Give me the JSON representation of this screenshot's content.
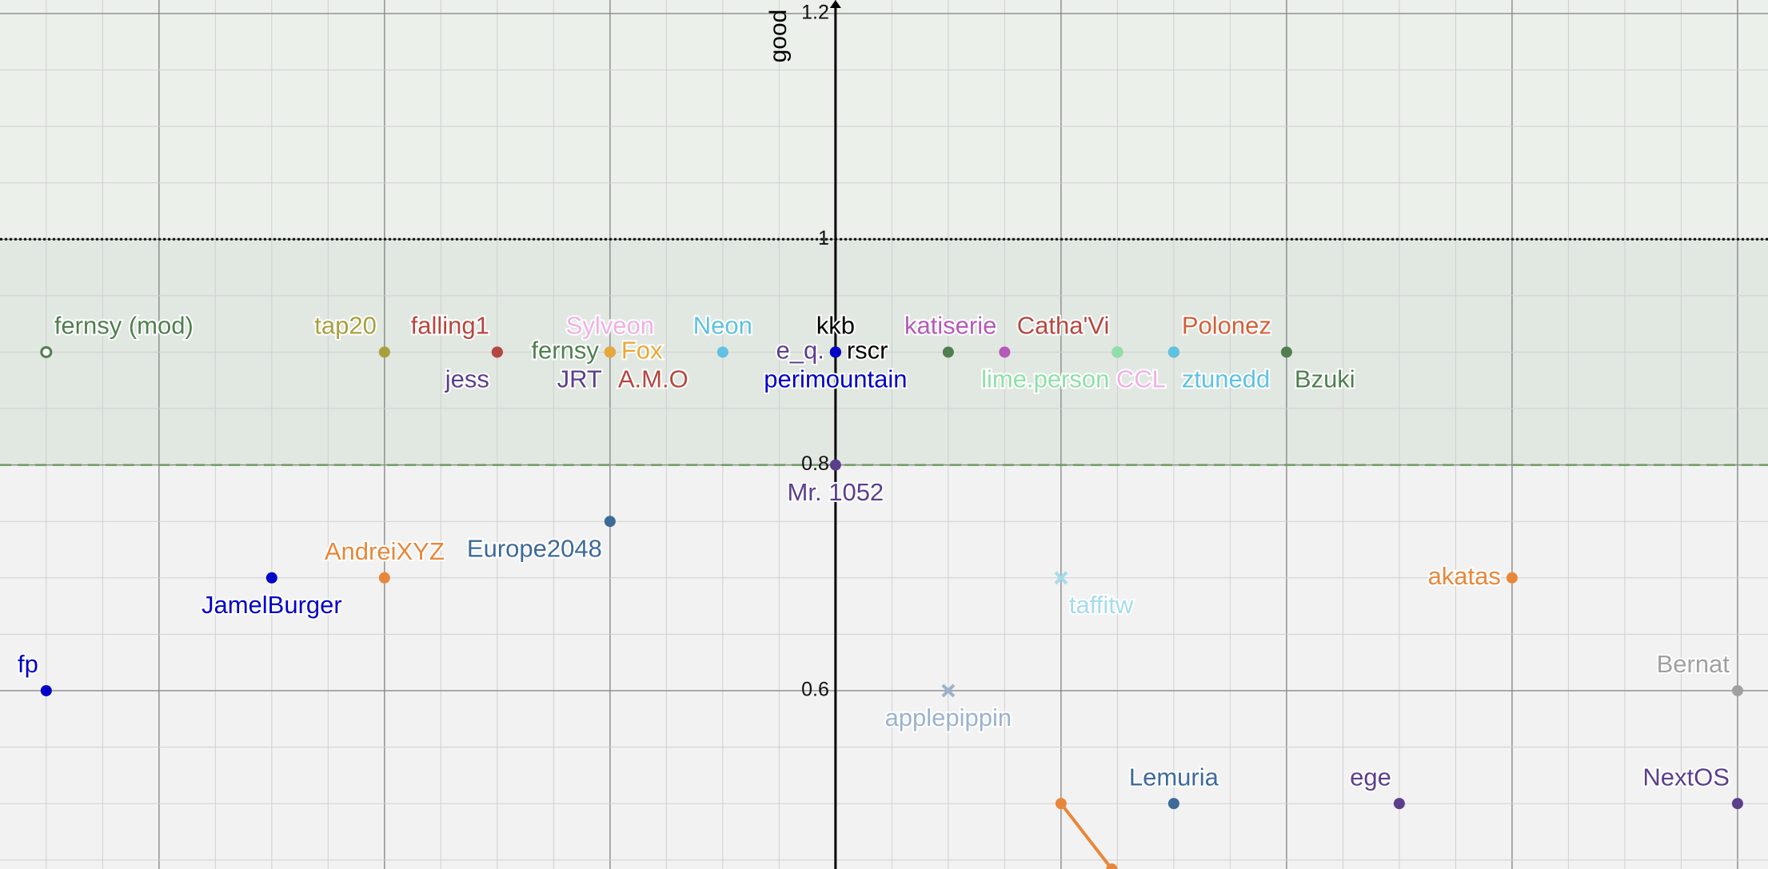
{
  "chart_data": {
    "type": "scatter",
    "y_label": "good",
    "xlim": [
      -0.741,
      0.827
    ],
    "ylim": [
      0.442,
      1.212
    ],
    "yticks": [
      0.6,
      0.8,
      1,
      1.2
    ],
    "grid": true,
    "bands": [
      {
        "from": 1,
        "to": 1.212,
        "color": "#ebf0eb"
      },
      {
        "from": 0.8,
        "to": 1,
        "color": "#e1e7e1"
      }
    ],
    "reference_lines": [
      {
        "y": 1,
        "style": "dotted",
        "color": "#111111"
      },
      {
        "y": 0.8,
        "style": "dashed",
        "color": "#6f9a63"
      }
    ],
    "series": [
      {
        "name": "fernsy (mod)",
        "color": "#4f7f4f",
        "x": [
          -0.7
        ],
        "values": [
          0.9
        ],
        "marker": "open",
        "label_pos": "above-right"
      },
      {
        "name": "tap20",
        "color": "#a8a03c",
        "x": [
          -0.4
        ],
        "values": [
          0.9
        ],
        "marker": "dot",
        "label_pos": "above-left"
      },
      {
        "name": "jess",
        "color": "#5b3f8c",
        "x": [
          -0.3
        ],
        "values": [
          0.9
        ],
        "marker": "dot",
        "label_pos": "below-left"
      },
      {
        "name": "falling1",
        "color": "#b5473f",
        "x": [
          -0.3
        ],
        "values": [
          0.9
        ],
        "marker": "dot",
        "label_pos": "above-left"
      },
      {
        "name": "JRT",
        "color": "#5b3f8c",
        "x": [
          -0.2
        ],
        "values": [
          0.9
        ],
        "marker": "dot",
        "label_pos": "below-left"
      },
      {
        "name": "A.M.O",
        "color": "#b5473f",
        "x": [
          -0.2
        ],
        "values": [
          0.9
        ],
        "marker": "dot",
        "label_pos": "below-right"
      },
      {
        "name": "fernsy",
        "color": "#4f7f4f",
        "x": [
          -0.2
        ],
        "values": [
          0.9
        ],
        "marker": "dot",
        "label_pos": "left"
      },
      {
        "name": "Sylveon",
        "color": "#f0b0e6",
        "x": [
          -0.2
        ],
        "values": [
          0.9
        ],
        "marker": "dot",
        "label_pos": "above"
      },
      {
        "name": "Fox",
        "color": "#e8a838",
        "x": [
          -0.2
        ],
        "values": [
          0.9
        ],
        "marker": "dot",
        "label_pos": "right"
      },
      {
        "name": "Neon",
        "color": "#5ec2e2",
        "x": [
          -0.1
        ],
        "values": [
          0.9
        ],
        "marker": "dot",
        "label_pos": "above"
      },
      {
        "name": "e_q.",
        "color": "#5b3f8c",
        "x": [
          0
        ],
        "values": [
          0.9
        ],
        "marker": "dot",
        "label_pos": "left"
      },
      {
        "name": "kkb",
        "color": "#000000",
        "x": [
          0
        ],
        "values": [
          0.9
        ],
        "marker": "dot",
        "label_pos": "above"
      },
      {
        "name": "rscr",
        "color": "#000000",
        "x": [
          0
        ],
        "values": [
          0.9
        ],
        "marker": "dot",
        "label_pos": "right"
      },
      {
        "name": "perimountain",
        "color": "#0000c8",
        "x": [
          0
        ],
        "values": [
          0.9
        ],
        "marker": "dot",
        "label_pos": "below"
      },
      {
        "color": "#4f7f4f",
        "x": [
          0.1
        ],
        "values": [
          0.9
        ],
        "marker": "dot"
      },
      {
        "name": "katiserie",
        "color": "#b55ab8",
        "x": [
          0.15
        ],
        "values": [
          0.9
        ],
        "marker": "dot",
        "label_pos": "above-left"
      },
      {
        "name": "Catha'Vi",
        "color": "#b5473f",
        "x": [
          0.25
        ],
        "values": [
          0.9
        ],
        "marker": "dot",
        "label_pos": "above-left"
      },
      {
        "name": "lime.person",
        "color": "#8fe0a8",
        "x": [
          0.25
        ],
        "values": [
          0.9
        ],
        "marker": "dot",
        "label_pos": "below-left"
      },
      {
        "name": "CCL",
        "color": "#f0b0e6",
        "x": [
          0.3
        ],
        "values": [
          0.9
        ],
        "marker": "dot",
        "label_pos": "below-left"
      },
      {
        "name": "Polonez",
        "color": "#d5603a",
        "x": [
          0.3
        ],
        "values": [
          0.9
        ],
        "marker": "dot",
        "label_pos": "above-right"
      },
      {
        "name": "ztunedd",
        "color": "#5ec2e2",
        "x": [
          0.3
        ],
        "values": [
          0.9
        ],
        "marker": "dot",
        "label_pos": "below-right"
      },
      {
        "name": "Bzuki",
        "color": "#4f7f4f",
        "x": [
          0.4
        ],
        "values": [
          0.9
        ],
        "marker": "dot",
        "label_pos": "below-right"
      },
      {
        "name": "Mr. 1052",
        "color": "#5b3f8c",
        "x": [
          0
        ],
        "values": [
          0.8
        ],
        "marker": "dot",
        "label_pos": "below"
      },
      {
        "name": "Europe2048",
        "color": "#3e6a99",
        "x": [
          -0.2
        ],
        "values": [
          0.75
        ],
        "marker": "dot",
        "label_pos": "below-left"
      },
      {
        "name": "JamelBurger",
        "color": "#0000c8",
        "x": [
          -0.5
        ],
        "values": [
          0.7
        ],
        "marker": "dot",
        "label_pos": "below"
      },
      {
        "name": "AndreiXYZ",
        "color": "#e8873a",
        "x": [
          -0.4
        ],
        "values": [
          0.7
        ],
        "marker": "dot",
        "label_pos": "above"
      },
      {
        "name": "fp",
        "color": "#0000c8",
        "x": [
          -0.7
        ],
        "values": [
          0.6
        ],
        "marker": "dot",
        "label_pos": "above-left"
      },
      {
        "name": "taffitw",
        "color": "#a6dbea",
        "x": [
          0.2
        ],
        "values": [
          0.7
        ],
        "marker": "cross",
        "label_pos": "below-right"
      },
      {
        "name": "applepippin",
        "color": "#9cb2cc",
        "x": [
          0.1
        ],
        "values": [
          0.6
        ],
        "marker": "cross",
        "label_pos": "below"
      },
      {
        "name": "akatas",
        "color": "#e8873a",
        "x": [
          0.6
        ],
        "values": [
          0.7
        ],
        "marker": "dot",
        "label_pos": "left"
      },
      {
        "name": "Bernat",
        "color": "#a0a0a0",
        "x": [
          0.8
        ],
        "values": [
          0.6
        ],
        "marker": "dot",
        "label_pos": "above-left"
      },
      {
        "name": "Lemuria",
        "color": "#3e6a99",
        "x": [
          0.3
        ],
        "values": [
          0.5
        ],
        "marker": "dot",
        "label_pos": "above"
      },
      {
        "name": "ege",
        "color": "#5b3f8c",
        "x": [
          0.5
        ],
        "values": [
          0.5
        ],
        "marker": "dot",
        "label_pos": "above-left"
      },
      {
        "name": "NextOS",
        "color": "#5b3f8c",
        "x": [
          0.8
        ],
        "values": [
          0.5
        ],
        "marker": "dot",
        "label_pos": "above-left"
      },
      {
        "color": "#e8873a",
        "x": [
          0.2,
          0.245
        ],
        "values": [
          0.5,
          0.442
        ],
        "marker": "dot",
        "line": true
      }
    ]
  }
}
